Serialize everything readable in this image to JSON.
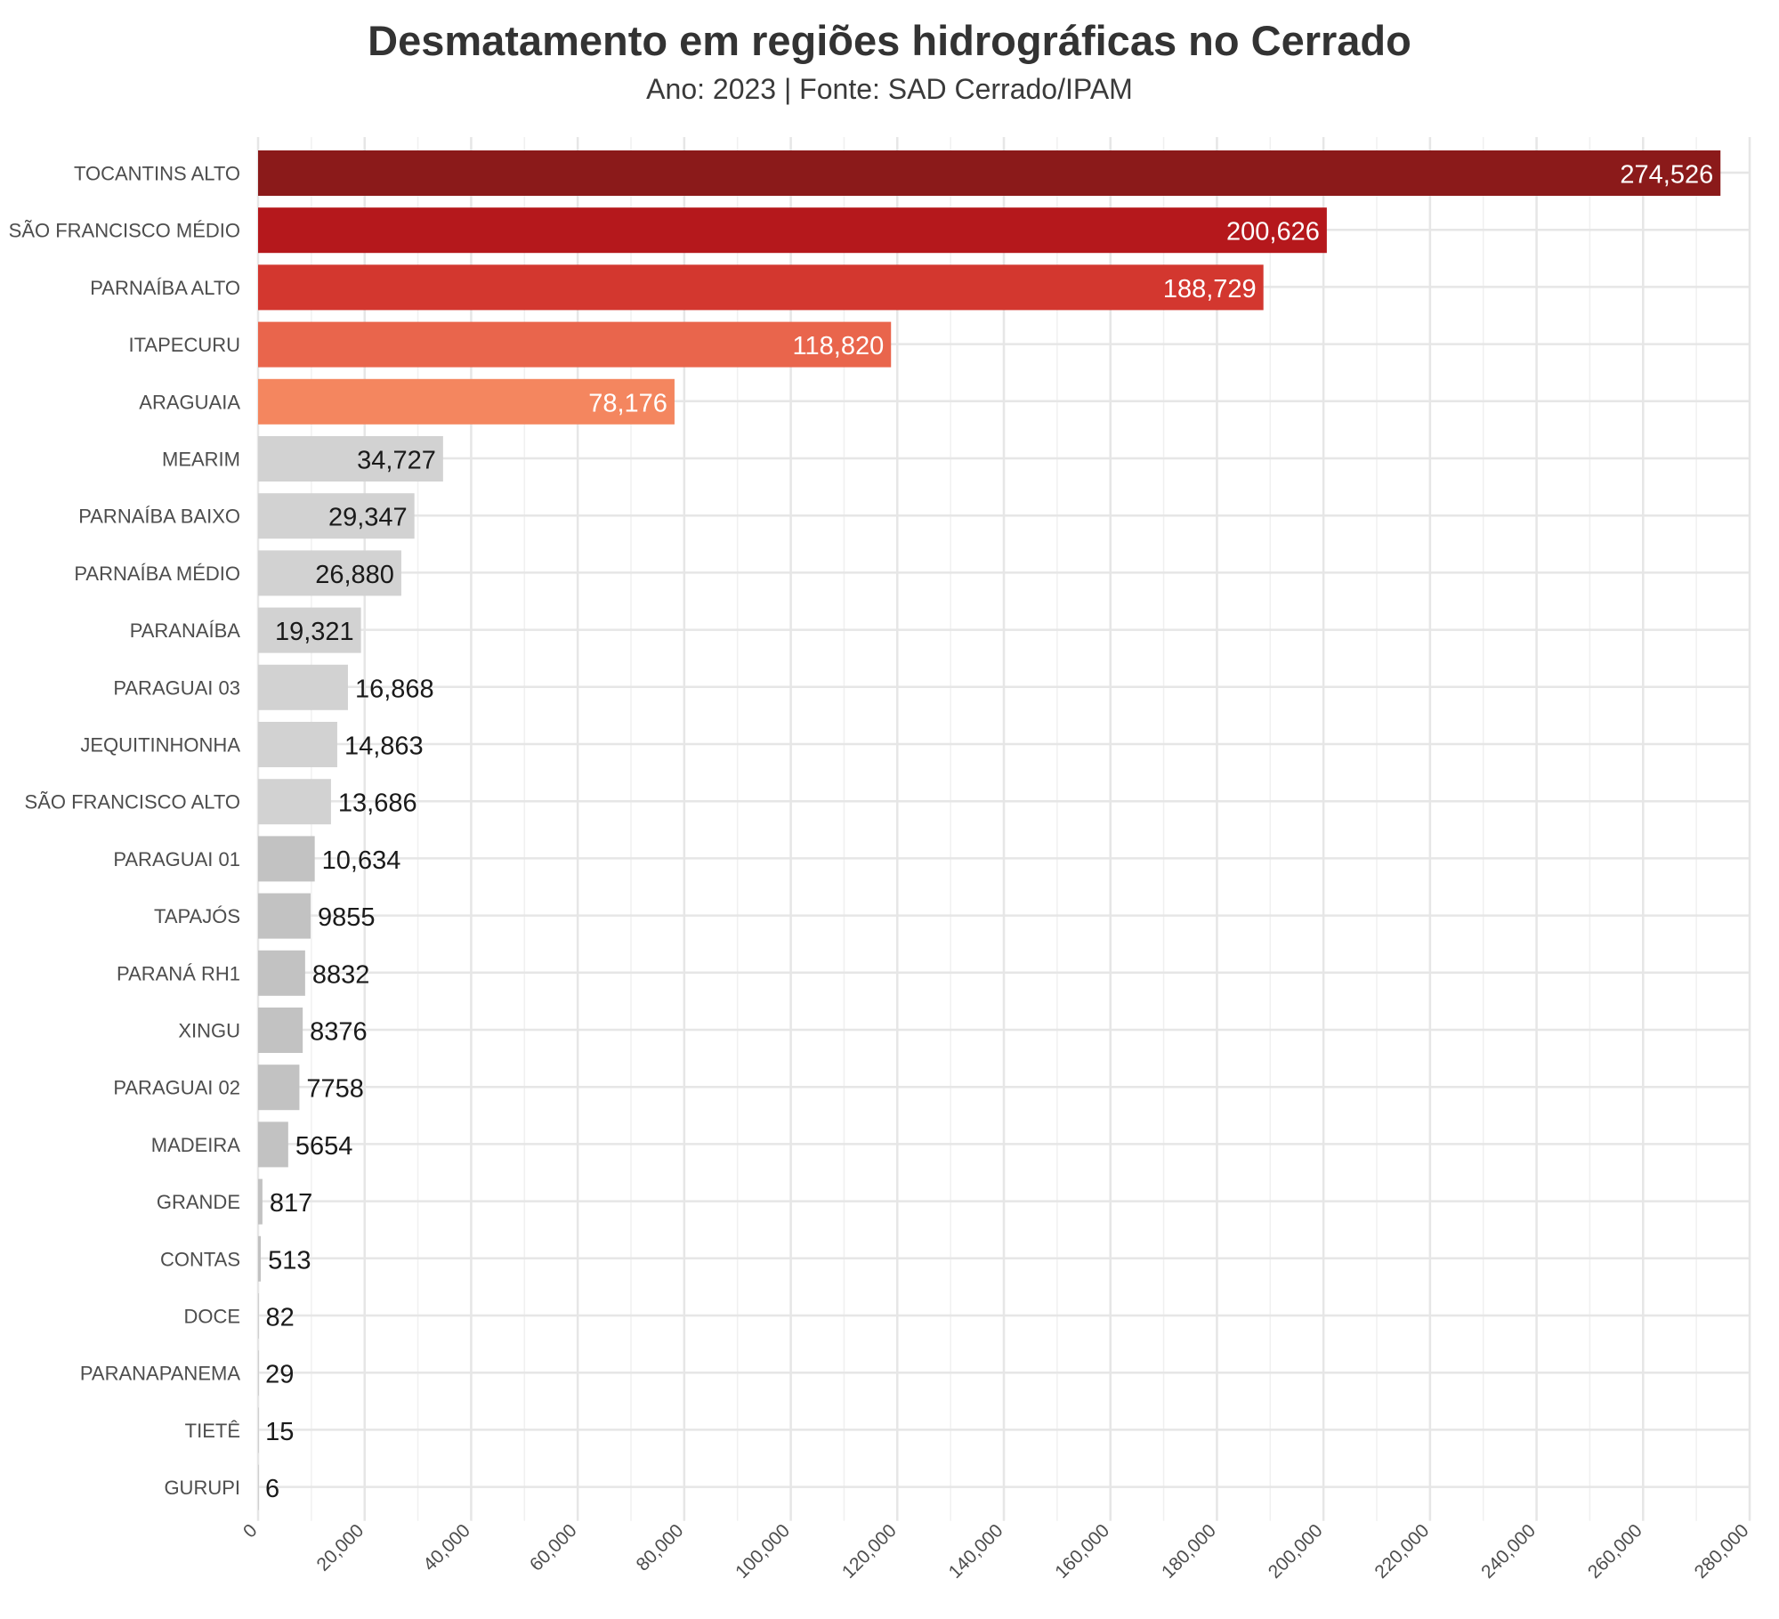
{
  "title": "Desmatamento em regiões hidrográficas no Cerrado",
  "subtitle": "Ano: 2023 | Fonte: SAD Cerrado/IPAM",
  "chart_data": {
    "type": "bar",
    "orientation": "horizontal",
    "title": "Desmatamento em regiões hidrográficas no Cerrado",
    "subtitle": "Ano: 2023 | Fonte: SAD Cerrado/IPAM",
    "xlabel": "",
    "ylabel": "",
    "xlim": [
      0,
      280000
    ],
    "xticks": [
      "0",
      "20,000",
      "40,000",
      "60,000",
      "80,000",
      "100,000",
      "120,000",
      "140,000",
      "160,000",
      "180,000",
      "200,000",
      "220,000",
      "240,000",
      "260,000",
      "280,000"
    ],
    "grid": true,
    "legend": "none",
    "categories": [
      "TOCANTINS ALTO",
      "SÃO FRANCISCO MÉDIO",
      "PARNAÍBA ALTO",
      "ITAPECURU",
      "ARAGUAIA",
      "MEARIM",
      "PARNAÍBA BAIXO",
      "PARNAÍBA MÉDIO",
      "PARANAÍBA",
      "PARAGUAI 03",
      "JEQUITINHONHA",
      "SÃO FRANCISCO ALTO",
      "PARAGUAI 01",
      "TAPAJÓS",
      "PARANÁ RH1",
      "XINGU",
      "PARAGUAI 02",
      "MADEIRA",
      "GRANDE",
      "CONTAS",
      "DOCE",
      "PARANAPANEMA",
      "TIETÊ",
      "GURUPI"
    ],
    "values": [
      274526,
      200626,
      188729,
      118820,
      78176,
      34727,
      29347,
      26880,
      19321,
      16868,
      14863,
      13686,
      10634,
      9855,
      8832,
      8376,
      7758,
      5654,
      817,
      513,
      82,
      29,
      15,
      6
    ],
    "value_labels": [
      "274,526",
      "200,626",
      "188,729",
      "118,820",
      "78,176",
      "34,727",
      "29,347",
      "26,880",
      "19,321",
      "16,868",
      "14,863",
      "13,686",
      "10,634",
      "9855",
      "8832",
      "8376",
      "7758",
      "5654",
      "817",
      "513",
      "82",
      "29",
      "15",
      "6"
    ],
    "colors": [
      "#8b1a1a",
      "#b5181c",
      "#d3372f",
      "#e9654c",
      "#f4865f",
      "#d2d2d2",
      "#d2d2d2",
      "#d2d2d2",
      "#d2d2d2",
      "#d2d2d2",
      "#d2d2d2",
      "#d2d2d2",
      "#c2c2c2",
      "#c2c2c2",
      "#c2c2c2",
      "#c2c2c2",
      "#c2c2c2",
      "#c2c2c2",
      "#c2c2c2",
      "#c2c2c2",
      "#c2c2c2",
      "#c2c2c2",
      "#c2c2c2",
      "#c2c2c2"
    ],
    "label_colors": [
      "#ffffff",
      "#ffffff",
      "#ffffff",
      "#ffffff",
      "#ffffff",
      "#1a1a1a",
      "#1a1a1a",
      "#1a1a1a",
      "#1a1a1a",
      "#1a1a1a",
      "#1a1a1a",
      "#1a1a1a",
      "#1a1a1a",
      "#1a1a1a",
      "#1a1a1a",
      "#1a1a1a",
      "#1a1a1a",
      "#1a1a1a",
      "#1a1a1a",
      "#1a1a1a",
      "#1a1a1a",
      "#1a1a1a",
      "#1a1a1a",
      "#1a1a1a"
    ]
  }
}
